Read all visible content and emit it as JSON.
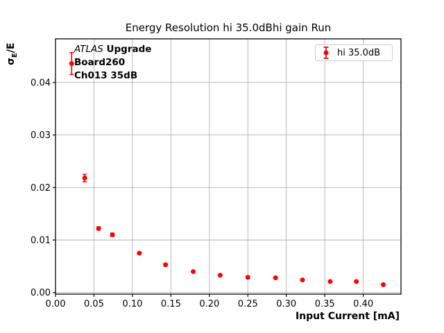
{
  "title": "Energy Resolution hi 35.0dBhi gain Run",
  "axes": {
    "xlabel": "Input Current [mA]",
    "ylabel_sigma": "σ",
    "ylabel_sub": "E",
    "ylabel_rest": "/E"
  },
  "annotation": {
    "line1_italic": "ATLAS",
    "line1_bold": " Upgrade",
    "line2": "Board260",
    "line3": "Ch013 35dB"
  },
  "legend": {
    "label": "hi 35.0dB"
  },
  "colors": {
    "series": "#ff0000",
    "grid": "#b0b0b0",
    "spine": "#000000",
    "text": "#000000",
    "legend_border": "#cccccc",
    "background": "#ffffff"
  },
  "chart_data": {
    "type": "scatter",
    "title": "Energy Resolution hi 35.0dBhi gain Run",
    "xlabel": "Input Current [mA]",
    "ylabel": "σE/E",
    "grid": true,
    "legend_position": "upper right",
    "xlim": [
      0.0,
      0.449
    ],
    "ylim": [
      -0.0003,
      0.0483
    ],
    "xticks": [
      {
        "v": 0.0,
        "label": "0.00"
      },
      {
        "v": 0.05,
        "label": "0.05"
      },
      {
        "v": 0.1,
        "label": "0.10"
      },
      {
        "v": 0.15,
        "label": "0.15"
      },
      {
        "v": 0.2,
        "label": "0.20"
      },
      {
        "v": 0.25,
        "label": "0.25"
      },
      {
        "v": 0.3,
        "label": "0.30"
      },
      {
        "v": 0.35,
        "label": "0.35"
      },
      {
        "v": 0.4,
        "label": "0.40"
      }
    ],
    "yticks": [
      {
        "v": 0.0,
        "label": "0.00"
      },
      {
        "v": 0.01,
        "label": "0.01"
      },
      {
        "v": 0.02,
        "label": "0.02"
      },
      {
        "v": 0.03,
        "label": "0.03"
      },
      {
        "v": 0.04,
        "label": "0.04"
      }
    ],
    "series": [
      {
        "name": "hi 35.0dB",
        "color": "#ff0000",
        "marker": "circle-with-errorbar",
        "points": [
          {
            "x": 0.021,
            "y": 0.0436,
            "yerr": 0.0021
          },
          {
            "x": 0.038,
            "y": 0.0218,
            "yerr": 0.0007
          },
          {
            "x": 0.056,
            "y": 0.0122,
            "yerr": 0.0003
          },
          {
            "x": 0.074,
            "y": 0.011,
            "yerr": 0.0003
          },
          {
            "x": 0.109,
            "y": 0.0075,
            "yerr": 0.0002
          },
          {
            "x": 0.143,
            "y": 0.0053,
            "yerr": 0.0002
          },
          {
            "x": 0.179,
            "y": 0.004,
            "yerr": 0.0001
          },
          {
            "x": 0.214,
            "y": 0.0033,
            "yerr": 0.0001
          },
          {
            "x": 0.25,
            "y": 0.0029,
            "yerr": 0.0001
          },
          {
            "x": 0.286,
            "y": 0.0028,
            "yerr": 0.0001
          },
          {
            "x": 0.321,
            "y": 0.0024,
            "yerr": 0.0001
          },
          {
            "x": 0.357,
            "y": 0.0021,
            "yerr": 0.0001
          },
          {
            "x": 0.391,
            "y": 0.0021,
            "yerr": 0.0001
          },
          {
            "x": 0.426,
            "y": 0.0015,
            "yerr": 0.0001
          }
        ]
      }
    ]
  }
}
